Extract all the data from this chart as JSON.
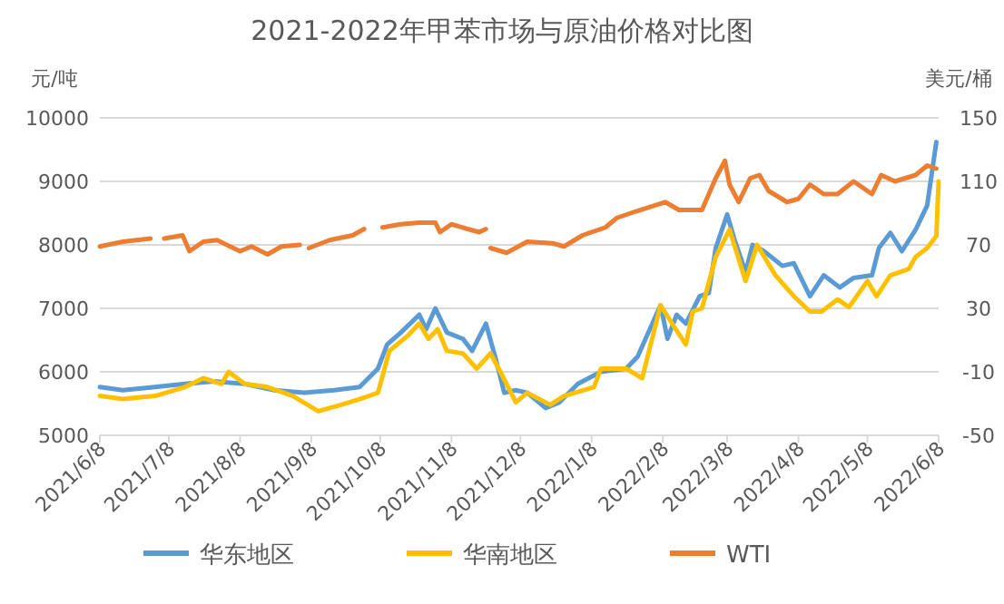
{
  "chart_data": {
    "type": "line",
    "title": "2021-2022年甲苯市场与原油价格对比图",
    "ylabel": "元/吨",
    "y2label": "美元/桶",
    "grid": "y",
    "legend": "bottom",
    "xlim": [
      "2021-06-08",
      "2022-06-08"
    ],
    "xticks": [
      {
        "value": "2021-06-08",
        "label": "2021/6/8"
      },
      {
        "value": "2021-07-08",
        "label": "2021/7/8"
      },
      {
        "value": "2021-08-08",
        "label": "2021/8/8"
      },
      {
        "value": "2021-09-08",
        "label": "2021/9/8"
      },
      {
        "value": "2021-10-08",
        "label": "2021/10/8"
      },
      {
        "value": "2021-11-08",
        "label": "2021/11/8"
      },
      {
        "value": "2021-12-08",
        "label": "2021/12/8"
      },
      {
        "value": "2022-01-08",
        "label": "2022/1/8"
      },
      {
        "value": "2022-02-08",
        "label": "2022/2/8"
      },
      {
        "value": "2022-03-08",
        "label": "2022/3/8"
      },
      {
        "value": "2022-04-08",
        "label": "2022/4/8"
      },
      {
        "value": "2022-05-08",
        "label": "2022/5/8"
      },
      {
        "value": "2022-06-08",
        "label": "2022/6/8"
      }
    ],
    "ylim": [
      5000,
      10000
    ],
    "yticks": [
      5000,
      6000,
      7000,
      8000,
      9000,
      10000
    ],
    "y2lim": [
      -50,
      150
    ],
    "y2ticks": [
      -50,
      -10,
      30,
      70,
      110,
      150
    ],
    "series": [
      {
        "name": "华东地区",
        "color": "#5b9bd5",
        "x": [
          "2021-06-08",
          "2021-06-18",
          "2021-07-02",
          "2021-07-15",
          "2021-07-28",
          "2021-08-10",
          "2021-08-23",
          "2021-09-05",
          "2021-09-18",
          "2021-09-29",
          "2021-10-07",
          "2021-10-11",
          "2021-10-17",
          "2021-10-25",
          "2021-10-28",
          "2021-11-01",
          "2021-11-06",
          "2021-11-13",
          "2021-11-17",
          "2021-11-23",
          "2021-11-27",
          "2021-12-01",
          "2021-12-06",
          "2021-12-11",
          "2021-12-19",
          "2021-12-25",
          "2022-01-02",
          "2022-01-12",
          "2022-01-23",
          "2022-01-28",
          "2022-02-07",
          "2022-02-10",
          "2022-02-14",
          "2022-02-18",
          "2022-02-24",
          "2022-02-28",
          "2022-03-03",
          "2022-03-08",
          "2022-03-11",
          "2022-03-16",
          "2022-03-19",
          "2022-03-24",
          "2022-04-01",
          "2022-04-06",
          "2022-04-13",
          "2022-04-19",
          "2022-04-26",
          "2022-05-02",
          "2022-05-10",
          "2022-05-13",
          "2022-05-18",
          "2022-05-23",
          "2022-05-29",
          "2022-06-03",
          "2022-06-07"
        ],
        "values": [
          5760,
          5710,
          5760,
          5810,
          5850,
          5810,
          5710,
          5670,
          5710,
          5760,
          6050,
          6430,
          6620,
          6900,
          6670,
          7000,
          6620,
          6520,
          6330,
          6760,
          6240,
          5670,
          5710,
          5670,
          5430,
          5520,
          5810,
          6000,
          6050,
          6240,
          7050,
          6520,
          6900,
          6760,
          7190,
          7240,
          7950,
          8480,
          8100,
          7570,
          8000,
          7900,
          7670,
          7710,
          7190,
          7520,
          7330,
          7480,
          7520,
          7950,
          8190,
          7900,
          8240,
          8620,
          9620
        ]
      },
      {
        "name": "华南地区",
        "color": "#ffc000",
        "x": [
          "2021-06-08",
          "2021-06-18",
          "2021-07-02",
          "2021-07-15",
          "2021-07-23",
          "2021-07-31",
          "2021-08-03",
          "2021-08-10",
          "2021-08-20",
          "2021-08-31",
          "2021-09-11",
          "2021-09-21",
          "2021-09-29",
          "2021-10-07",
          "2021-10-12",
          "2021-10-20",
          "2021-10-25",
          "2021-10-29",
          "2021-11-02",
          "2021-11-06",
          "2021-11-13",
          "2021-11-19",
          "2021-11-25",
          "2021-11-30",
          "2021-12-06",
          "2021-12-11",
          "2021-12-21",
          "2021-12-27",
          "2022-01-09",
          "2022-01-12",
          "2022-01-23",
          "2022-01-30",
          "2022-02-07",
          "2022-02-12",
          "2022-02-18",
          "2022-02-21",
          "2022-02-25",
          "2022-03-03",
          "2022-03-09",
          "2022-03-16",
          "2022-03-21",
          "2022-03-29",
          "2022-04-06",
          "2022-04-13",
          "2022-04-18",
          "2022-04-25",
          "2022-04-30",
          "2022-05-08",
          "2022-05-12",
          "2022-05-18",
          "2022-05-26",
          "2022-05-29",
          "2022-06-03",
          "2022-06-07",
          "2022-06-08"
        ],
        "values": [
          5620,
          5570,
          5620,
          5760,
          5900,
          5810,
          6000,
          5810,
          5760,
          5620,
          5380,
          5480,
          5570,
          5670,
          6330,
          6570,
          6760,
          6520,
          6670,
          6330,
          6290,
          6050,
          6290,
          5950,
          5520,
          5670,
          5480,
          5620,
          5760,
          6050,
          6050,
          5900,
          7050,
          6760,
          6430,
          6950,
          7000,
          7810,
          8240,
          7430,
          8000,
          7520,
          7190,
          6950,
          6950,
          7140,
          7020,
          7430,
          7190,
          7520,
          7620,
          7810,
          7950,
          8140,
          9000
        ]
      },
      {
        "name": "WTI",
        "color": "#ed7d31",
        "axis": "y2",
        "x": [
          "2021-06-08",
          "2021-06-18",
          "2021-06-30",
          "2021-07-03",
          "2021-07-06",
          "2021-07-14",
          "2021-07-17",
          "2021-07-23",
          "2021-07-29",
          "2021-08-08",
          "2021-08-13",
          "2021-08-20",
          "2021-08-26",
          "2021-09-03",
          "2021-09-05",
          "2021-09-07",
          "2021-09-16",
          "2021-09-26",
          "2021-10-01",
          "2021-10-05",
          "2021-10-09",
          "2021-10-17",
          "2021-10-25",
          "2021-11-01",
          "2021-11-03",
          "2021-11-08",
          "2021-11-15",
          "2021-11-20",
          "2021-11-23",
          "2021-11-24",
          "2021-11-25",
          "2021-12-02",
          "2021-12-11",
          "2021-12-22",
          "2021-12-27",
          "2022-01-04",
          "2022-01-14",
          "2022-01-19",
          "2022-01-27",
          "2022-02-09",
          "2022-02-15",
          "2022-02-25",
          "2022-03-03",
          "2022-03-07",
          "2022-03-09",
          "2022-03-13",
          "2022-03-18",
          "2022-03-22",
          "2022-03-26",
          "2022-04-03",
          "2022-04-08",
          "2022-04-13",
          "2022-04-19",
          "2022-04-25",
          "2022-05-02",
          "2022-05-10",
          "2022-05-14",
          "2022-05-20",
          "2022-05-29",
          "2022-06-03",
          "2022-06-07"
        ],
        "values": [
          69,
          72,
          74,
          null,
          74,
          76,
          66,
          72,
          73,
          66,
          69,
          64,
          69,
          70,
          null,
          68,
          73,
          76,
          80,
          null,
          81,
          83,
          84,
          84,
          78,
          83,
          80,
          78,
          80,
          null,
          68,
          65,
          72,
          71,
          69,
          76,
          81,
          87,
          91,
          97,
          92,
          92,
          112,
          123,
          108,
          97,
          112,
          114,
          104,
          97,
          99,
          108,
          102,
          102,
          110,
          102,
          114,
          110,
          114,
          120,
          118
        ]
      }
    ]
  }
}
